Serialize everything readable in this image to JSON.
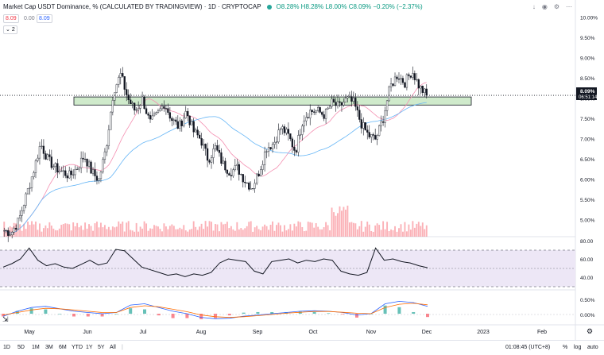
{
  "header": {
    "title": "Market Cap USDT Dominance, % (CALCULATED BY TRADINGVIEW) · 1D · CRYPTOCAP",
    "ohlc": "O8.28% H8.28% L8.00% C8.09% −0.20% (−2.37%)",
    "bid": "8.09",
    "spread": "0.00",
    "ask": "8.09",
    "indicators_toggle": "2"
  },
  "price_axis": {
    "labels": [
      "10.00%",
      "9.50%",
      "9.00%",
      "8.50%",
      "8.00%",
      "7.50%",
      "7.00%",
      "6.50%",
      "6.00%",
      "5.50%",
      "5.00%"
    ],
    "current_price": "8.09%",
    "countdown": "06:51:14"
  },
  "rsi_axis": {
    "labels": [
      "80.00",
      "60.00",
      "40.00"
    ]
  },
  "macd_axis": {
    "labels": [
      "0.50%",
      "0.00%"
    ]
  },
  "time_axis": {
    "labels": [
      "May",
      "Jun",
      "Jul",
      "Aug",
      "Sep",
      "Oct",
      "Nov",
      "Dec",
      "2023",
      "Feb"
    ]
  },
  "bottom_bar": {
    "timeframes": [
      "1D",
      "5D",
      "1M",
      "3M",
      "6M",
      "YTD",
      "1Y",
      "5Y",
      "All"
    ],
    "clock": "01:08:45 (UTC+8)",
    "percent_label": "%",
    "log_label": "log",
    "auto_label": "auto"
  },
  "colors": {
    "up": "#26a69a",
    "down": "#131722",
    "ma_short": "#f48fb1",
    "ma_long": "#64b5f6",
    "volume": "#f7525f",
    "zone_fill": "#cfeacb",
    "rsi_band": "#ede7f6",
    "macd_line": "#2962ff",
    "signal_line": "#ff6d00"
  },
  "icons": [
    "arrow-down-icon",
    "visibility-icon",
    "settings-icon",
    "more-icon",
    "camera-icon",
    "gear-icon"
  ],
  "chart_data": {
    "type": "candlestick",
    "series_name": "Market Cap USDT Dominance",
    "y_unit": "%",
    "ylim": [
      4.6,
      10.15
    ],
    "x_ticks": [
      "May",
      "Jun",
      "Jul",
      "Aug",
      "Sep",
      "Oct",
      "Nov",
      "Dec",
      "2023",
      "Feb"
    ],
    "close_path": [
      4.75,
      4.7,
      5.0,
      5.6,
      6.2,
      6.9,
      6.5,
      6.3,
      6.2,
      6.1,
      6.3,
      6.6,
      6.2,
      6.0,
      6.8,
      8.2,
      8.6,
      8.0,
      7.7,
      8.0,
      7.4,
      7.6,
      7.9,
      7.5,
      7.3,
      7.7,
      7.2,
      7.0,
      6.5,
      6.8,
      6.4,
      6.2,
      6.3,
      6.0,
      5.8,
      6.2,
      6.8,
      6.9,
      7.3,
      7.1,
      6.7,
      7.5,
      7.7,
      7.7,
      7.6,
      7.9,
      7.8,
      8.0,
      7.9,
      7.4,
      7.1,
      7.0,
      7.5,
      8.3,
      8.6,
      8.4,
      8.7,
      8.3,
      8.09
    ],
    "support_zone": [
      7.85,
      8.05
    ],
    "last_close": 8.09,
    "rsi": {
      "ylim": [
        20,
        90
      ],
      "levels": [
        70,
        50,
        30
      ],
      "path": [
        50,
        55,
        62,
        78,
        60,
        52,
        55,
        50,
        48,
        54,
        60,
        53,
        56,
        76,
        74,
        62,
        50,
        46,
        42,
        38,
        40,
        36,
        40,
        38,
        42,
        56,
        62,
        60,
        58,
        44,
        40,
        58,
        60,
        62,
        56,
        60,
        58,
        62,
        60,
        44,
        40,
        38,
        42,
        78,
        60,
        62,
        58,
        56,
        52,
        49
      ]
    },
    "macd": {
      "ylim": [
        -0.35,
        0.8
      ],
      "macd_path": [
        -0.1,
        0.1,
        0.25,
        0.3,
        0.2,
        0.1,
        0.05,
        0.0,
        0.05,
        0.35,
        0.4,
        0.25,
        0.1,
        0.0,
        -0.15,
        -0.2,
        -0.18,
        -0.1,
        -0.05,
        0.0,
        0.05,
        0.1,
        0.12,
        0.1,
        0.05,
        -0.05,
        0.0,
        0.4,
        0.5,
        0.45,
        0.3
      ],
      "signal_path": [
        -0.05,
        0.05,
        0.15,
        0.22,
        0.2,
        0.15,
        0.1,
        0.05,
        0.05,
        0.25,
        0.32,
        0.28,
        0.18,
        0.08,
        -0.05,
        -0.12,
        -0.15,
        -0.12,
        -0.08,
        -0.03,
        0.02,
        0.06,
        0.09,
        0.09,
        0.06,
        0.02,
        0.0,
        0.25,
        0.38,
        0.42,
        0.36
      ]
    }
  }
}
